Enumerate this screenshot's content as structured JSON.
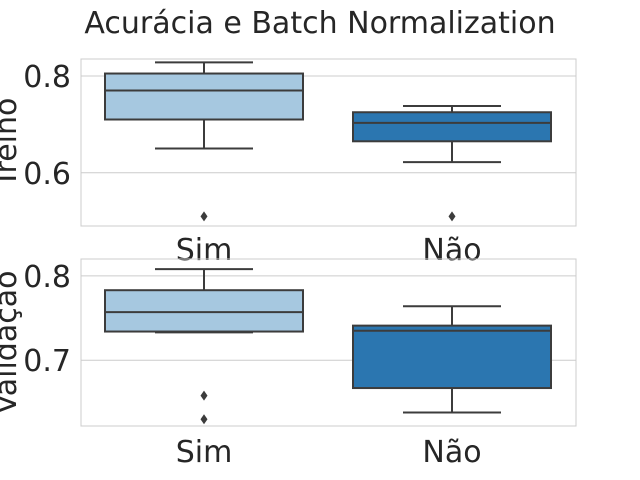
{
  "chart_data": {
    "type": "box",
    "title": "Acurácia e Batch Normalization",
    "grid": true,
    "colors": {
      "Sim": "#a6c8e0",
      "Não": "#2b76b0",
      "line": "#3c3c3c",
      "grid": "#cccccc",
      "frame": "#cccccc"
    },
    "panels": [
      {
        "ylabel": "Treino",
        "categories": [
          "Sim",
          "Não"
        ],
        "ylim": [
          0.49,
          0.835
        ],
        "yticks": [
          0.8,
          0.6
        ],
        "ytick_labels": [
          "0.8",
          "0.6"
        ],
        "boxes": [
          {
            "category": "Sim",
            "whislo": 0.65,
            "q1": 0.71,
            "med": 0.77,
            "q3": 0.805,
            "whishi": 0.828,
            "fliers": [
              0.51
            ]
          },
          {
            "category": "Não",
            "whislo": 0.622,
            "q1": 0.665,
            "med": 0.703,
            "q3": 0.725,
            "whishi": 0.738,
            "fliers": [
              0.51
            ]
          }
        ]
      },
      {
        "ylabel": "Validação",
        "categories": [
          "Sim",
          "Não"
        ],
        "ylim": [
          0.622,
          0.82
        ],
        "yticks": [
          0.8,
          0.7
        ],
        "ytick_labels": [
          "0.8",
          "0.7"
        ],
        "boxes": [
          {
            "category": "Sim",
            "whislo": 0.733,
            "q1": 0.734,
            "med": 0.757,
            "q3": 0.783,
            "whishi": 0.808,
            "fliers": [
              0.658,
              0.63
            ]
          },
          {
            "category": "Não",
            "whislo": 0.638,
            "q1": 0.667,
            "med": 0.735,
            "q3": 0.741,
            "whishi": 0.764,
            "fliers": []
          }
        ]
      }
    ]
  }
}
